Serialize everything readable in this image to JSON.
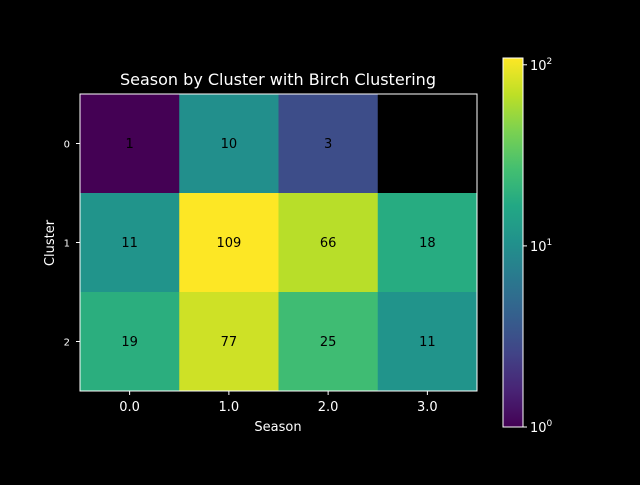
{
  "chart_data": {
    "type": "heatmap",
    "title": "Season by Cluster with Birch Clustering",
    "xlabel": "Season",
    "ylabel": "Cluster",
    "x_categories": [
      "0.0",
      "1.0",
      "2.0",
      "3.0"
    ],
    "y_categories": [
      "0",
      "1",
      "2"
    ],
    "values": [
      [
        1,
        10,
        3,
        null
      ],
      [
        11,
        109,
        66,
        18
      ],
      [
        19,
        77,
        25,
        11
      ]
    ],
    "colorscale": "viridis",
    "color_scale_type": "log",
    "color_range": [
      1,
      109
    ],
    "colorbar": {
      "ticks": [
        {
          "base": "10",
          "exp": "0",
          "value": 1
        },
        {
          "base": "10",
          "exp": "1",
          "value": 10
        },
        {
          "base": "10",
          "exp": "2",
          "value": 100
        }
      ]
    },
    "missing_color": "#000000",
    "background": "#000000",
    "foreground": "#ffffff",
    "annotation_color": "#000000"
  }
}
